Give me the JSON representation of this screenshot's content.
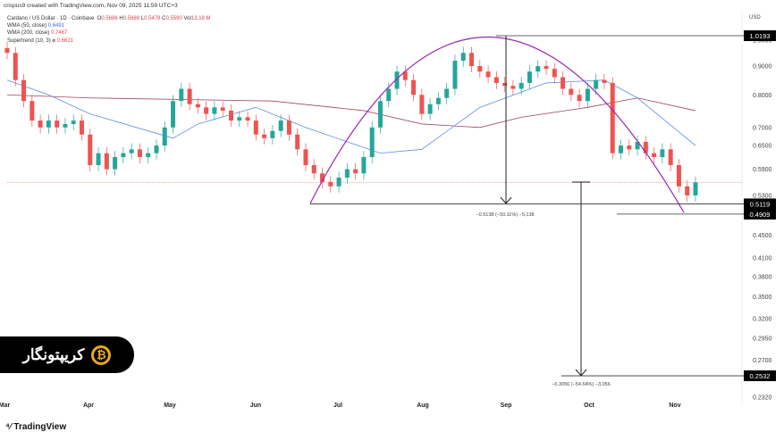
{
  "header": "crispus9 created with TradingView.com, Nov 09, 2025 11:59 UTC+3",
  "legend": {
    "symbol": "Cardano / US Dollar · 1D · Coinbase",
    "o": "0.5686",
    "h": "0.5688",
    "l": "0.5478",
    "c": "0.5590",
    "vol": "13.18 M",
    "wma50": "WMA (50, close)",
    "wma50_val": "0.6491",
    "wma200": "WMA (200, close)",
    "wma200_val": "0.7467",
    "st": "Supertrend (10, 3)",
    "st_sym": "⌀",
    "st_val": "0.6621"
  },
  "logo_watermark": "کریپتونگار",
  "tv_logo": "TradingView",
  "chart_data": {
    "type": "candlestick",
    "currency": "USD",
    "yscale": "log",
    "ylim": [
      0.232,
      1.06
    ],
    "y_ticks": [
      "1.0000",
      "0.9000",
      "0.8000",
      "0.7000",
      "0.6500",
      "0.5900",
      "0.5300",
      "0.4500",
      "0.4100",
      "0.3800",
      "0.3500",
      "0.3200",
      "0.2950",
      "0.2700",
      "0.2320"
    ],
    "x_labels": [
      "Mar",
      "Apr",
      "May",
      "Jun",
      "Jul",
      "Aug",
      "Sep",
      "Oct",
      "Nov"
    ],
    "closes": [
      0.95,
      0.85,
      0.78,
      0.72,
      0.7,
      0.72,
      0.7,
      0.71,
      0.72,
      0.68,
      0.6,
      0.63,
      0.59,
      0.62,
      0.63,
      0.64,
      0.62,
      0.63,
      0.65,
      0.7,
      0.78,
      0.82,
      0.77,
      0.76,
      0.74,
      0.76,
      0.75,
      0.72,
      0.73,
      0.72,
      0.68,
      0.67,
      0.69,
      0.72,
      0.68,
      0.64,
      0.6,
      0.58,
      0.56,
      0.55,
      0.57,
      0.59,
      0.58,
      0.62,
      0.7,
      0.78,
      0.82,
      0.88,
      0.85,
      0.8,
      0.74,
      0.77,
      0.79,
      0.82,
      0.92,
      0.95,
      0.9,
      0.88,
      0.86,
      0.84,
      0.83,
      0.82,
      0.84,
      0.88,
      0.9,
      0.89,
      0.86,
      0.82,
      0.8,
      0.78,
      0.82,
      0.85,
      0.84,
      0.63,
      0.65,
      0.64,
      0.66,
      0.63,
      0.62,
      0.64,
      0.6,
      0.55,
      0.53,
      0.559
    ],
    "wma50": [
      [
        0,
        0.85
      ],
      [
        5,
        0.8
      ],
      [
        10,
        0.74
      ],
      [
        20,
        0.67
      ],
      [
        23,
        0.71
      ],
      [
        30,
        0.76
      ],
      [
        36,
        0.7
      ],
      [
        45,
        0.63
      ],
      [
        50,
        0.64
      ],
      [
        57,
        0.76
      ],
      [
        65,
        0.84
      ],
      [
        72,
        0.85
      ],
      [
        76,
        0.79
      ],
      [
        83,
        0.65
      ]
    ],
    "wma200": [
      [
        0,
        0.8
      ],
      [
        10,
        0.79
      ],
      [
        32,
        0.78
      ],
      [
        43,
        0.75
      ],
      [
        50,
        0.71
      ],
      [
        57,
        0.7
      ],
      [
        62,
        0.73
      ],
      [
        70,
        0.76
      ],
      [
        76,
        0.79
      ],
      [
        83,
        0.75
      ]
    ],
    "price_labels": [
      "1.0193",
      "0.5119",
      "0.4909",
      "0.2532"
    ],
    "measure1": "−0.5138 (−50.11%) −5,138",
    "measure2": "−0.3056 (−54.64%) −3,056",
    "colors": {
      "up": "#26a69a",
      "down": "#ef5350",
      "wma50": "#5b8ee6",
      "wma200": "#a0455a",
      "arc": "#9c27b0"
    }
  }
}
